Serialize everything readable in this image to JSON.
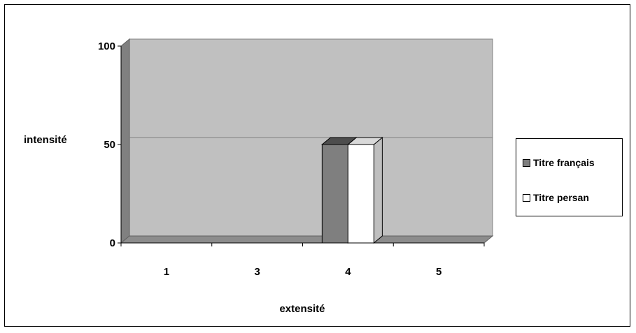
{
  "chart_data": {
    "type": "bar",
    "categories": [
      "1",
      "3",
      "4",
      "5"
    ],
    "series": [
      {
        "name": "Titre français",
        "values": [
          0,
          0,
          50,
          0
        ],
        "color": "#7f7f7f"
      },
      {
        "name": "Titre persan",
        "values": [
          0,
          0,
          50,
          0
        ],
        "color": "#ffffff"
      }
    ],
    "title": "",
    "xlabel": "extensité",
    "ylabel": "intensité",
    "ylim": [
      0,
      100
    ],
    "yticks": [
      "0",
      "50",
      "100"
    ],
    "grid": true,
    "legend_position": "right",
    "plot_background": "#c0c0c0",
    "three_d": true
  }
}
